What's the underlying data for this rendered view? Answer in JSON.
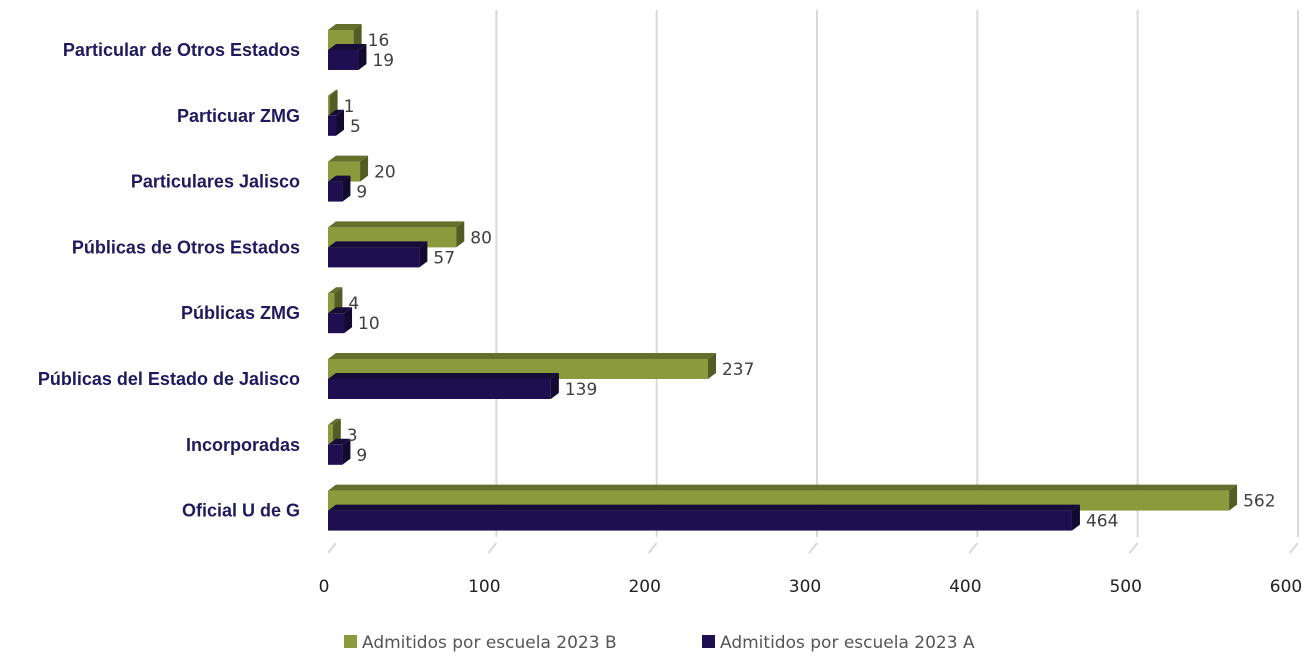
{
  "chart_data": {
    "type": "bar",
    "orientation": "horizontal",
    "categories": [
      "Particular de Otros Estados",
      "Particuar ZMG",
      "Particulares Jalisco",
      "Públicas de Otros Estados",
      "Públicas ZMG",
      "Públicas del Estado de Jalisco",
      "Incorporadas",
      "Oficial U de G"
    ],
    "series": [
      {
        "name": "Admitidos por escuela 2023 B",
        "color": "#8a9a3c",
        "values": [
          16,
          1,
          20,
          80,
          4,
          237,
          3,
          562
        ]
      },
      {
        "name": "Admitidos por escuela 2023 A",
        "color": "#1e1050",
        "values": [
          19,
          5,
          9,
          57,
          10,
          139,
          9,
          464
        ]
      }
    ],
    "xlim": [
      0,
      600
    ],
    "ticks": [
      "0",
      "100",
      "200",
      "300",
      "400",
      "500",
      "600"
    ],
    "grid": true,
    "legend_position": "bottom"
  }
}
